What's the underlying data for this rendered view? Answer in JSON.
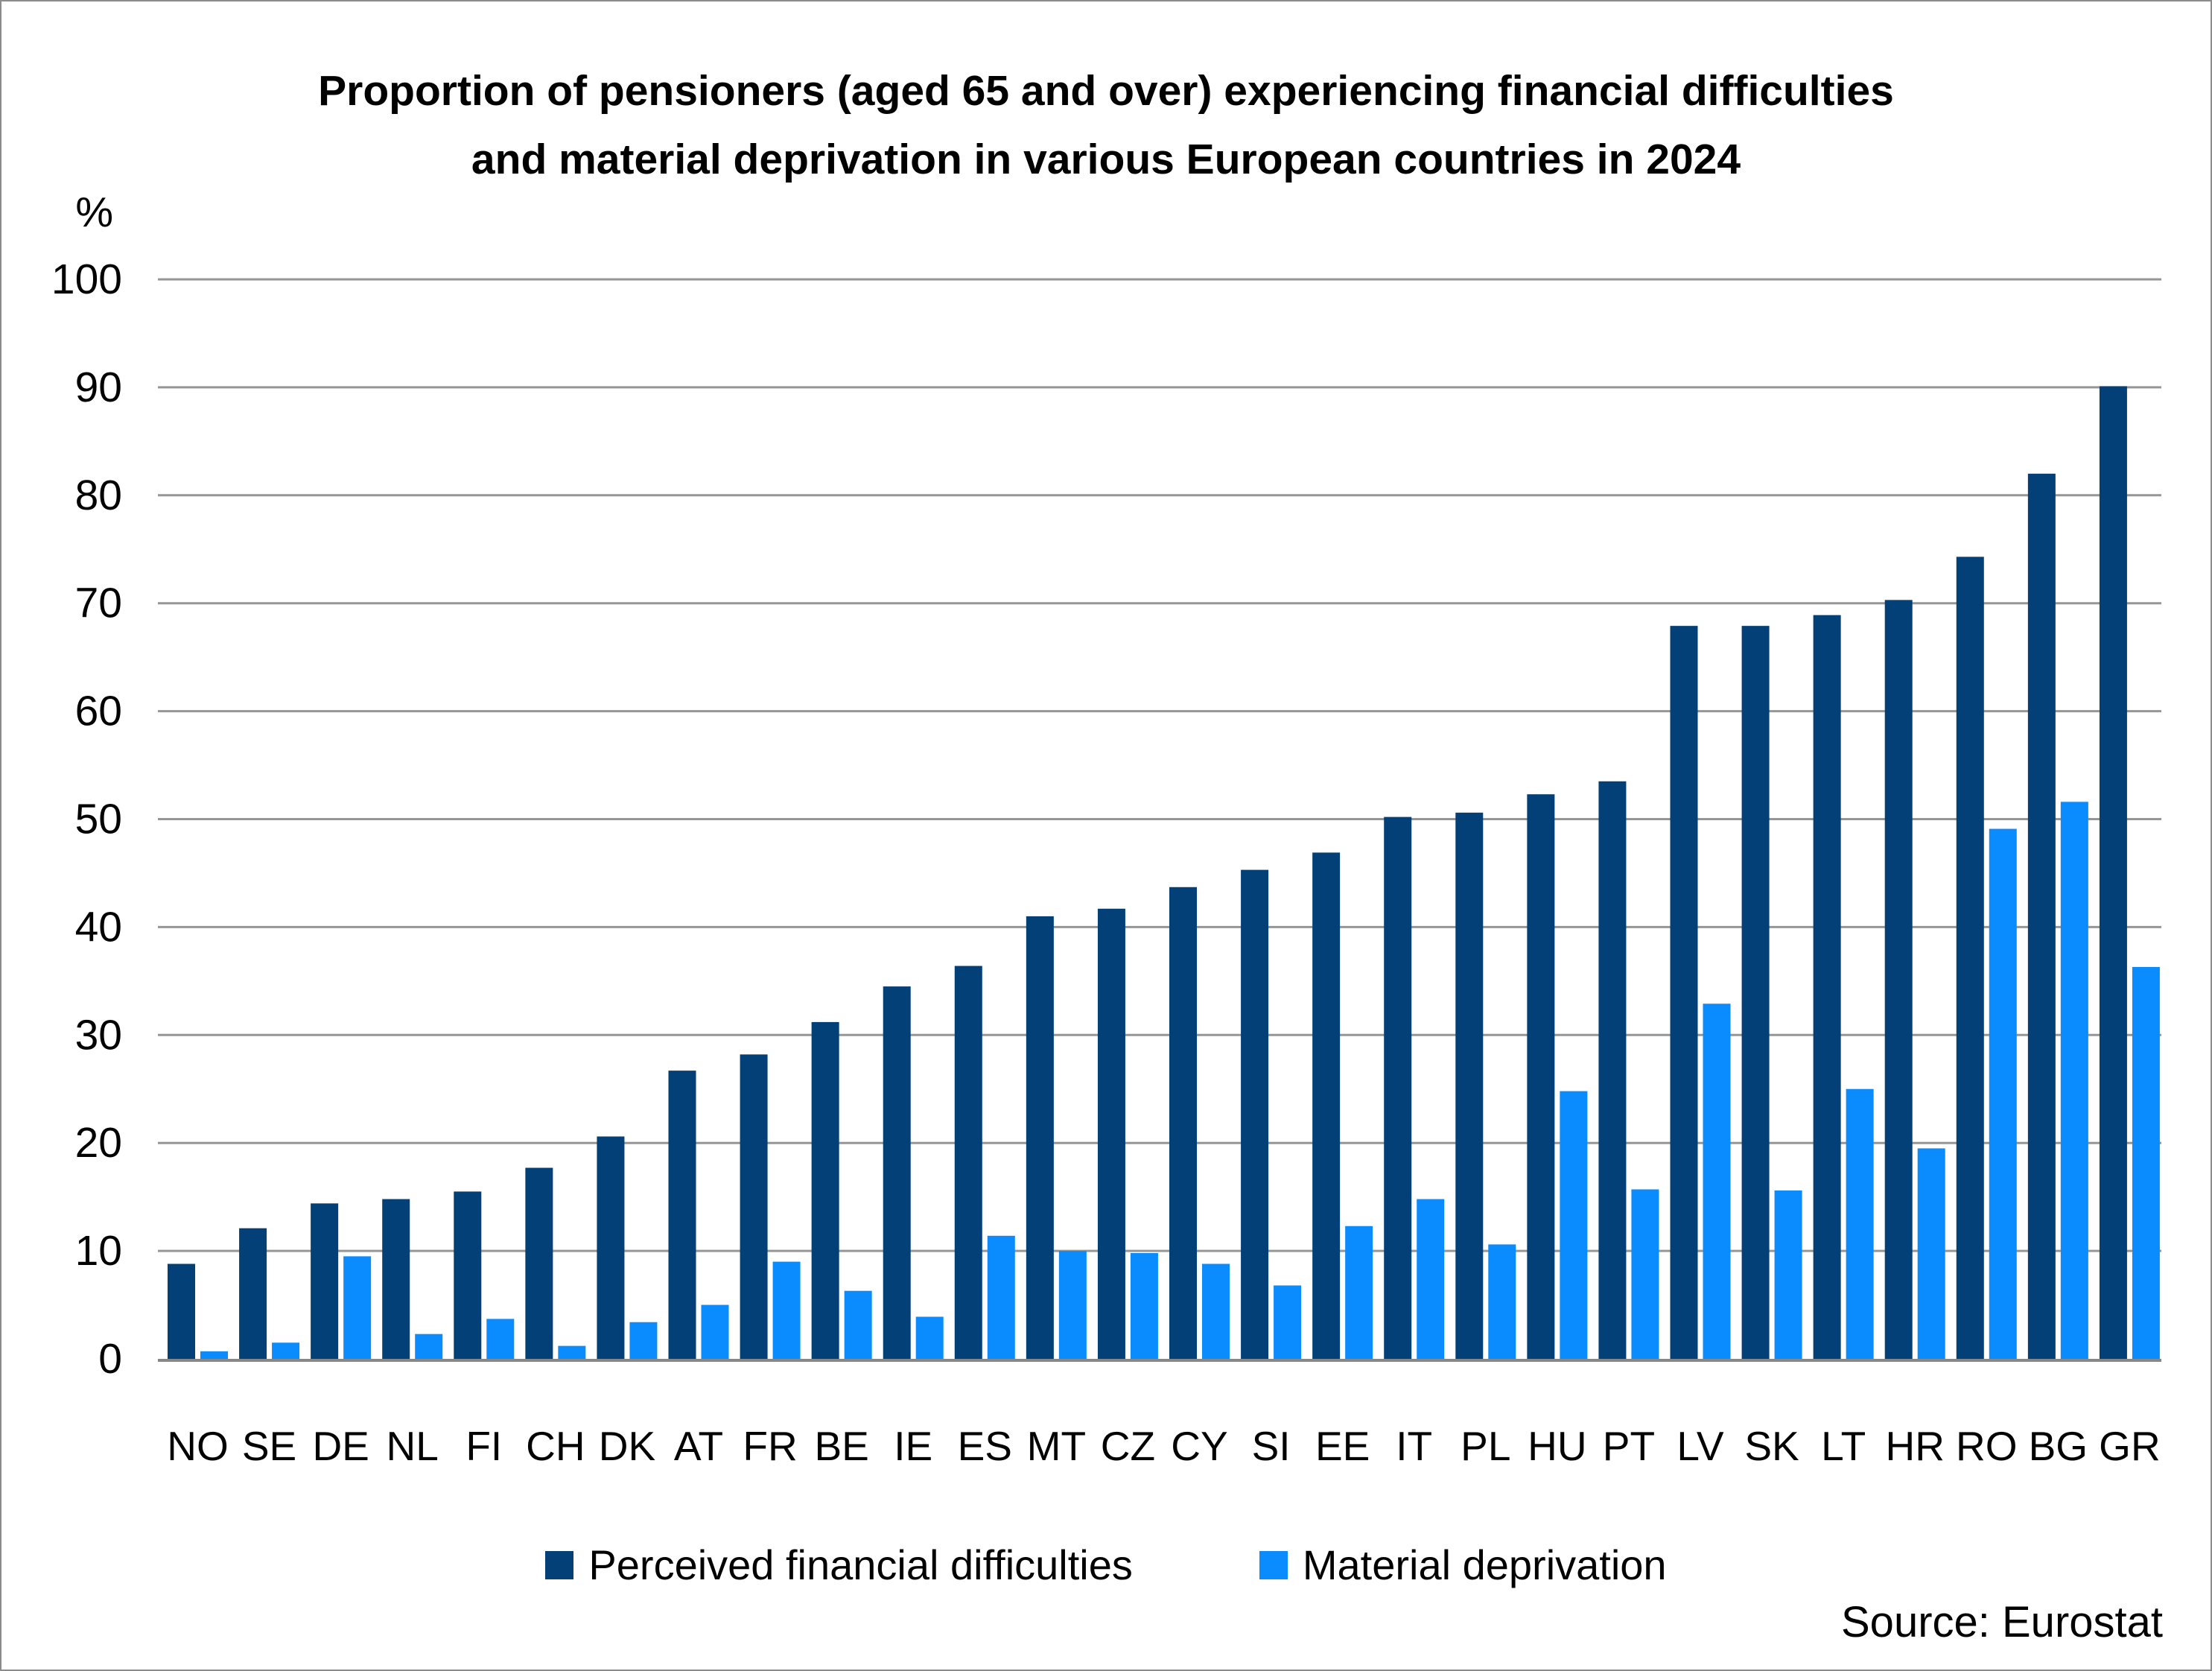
{
  "page": {
    "title_line1": "Proportion of pensioners (aged 65 and over) experiencing financial difficulties",
    "title_line2": "and material deprivation in various European countries in 2024",
    "source": "Source: Eurostat"
  },
  "chart_data": {
    "type": "bar",
    "title": "Proportion of pensioners (aged 65 and over) experiencing financial difficulties and material deprivation in various European countries in 2024",
    "unit_label": "%",
    "categories": [
      "NO",
      "SE",
      "DE",
      "NL",
      "FI",
      "CH",
      "DK",
      "AT",
      "FR",
      "BE",
      "IE",
      "ES",
      "MT",
      "CZ",
      "CY",
      "SI",
      "EE",
      "IT",
      "PL",
      "HU",
      "PT",
      "LV",
      "SK",
      "LT",
      "HR",
      "RO",
      "BG",
      "GR"
    ],
    "series": [
      {
        "name": "Perceived financial difficulties",
        "color": "#044078",
        "values": [
          8.8,
          12.1,
          14.4,
          14.8,
          15.5,
          17.7,
          20.6,
          26.7,
          28.2,
          31.2,
          34.5,
          36.4,
          41.0,
          41.7,
          43.7,
          45.3,
          46.9,
          50.2,
          50.6,
          52.3,
          53.5,
          67.9,
          67.9,
          68.9,
          70.3,
          74.3,
          82.0,
          90.1
        ]
      },
      {
        "name": "Material deprivation",
        "color": "#0a8cff",
        "values": [
          0.7,
          1.5,
          9.5,
          2.3,
          3.7,
          1.2,
          3.4,
          5.0,
          9.0,
          6.3,
          3.9,
          11.4,
          10.0,
          9.8,
          8.8,
          6.8,
          12.3,
          14.8,
          10.6,
          24.8,
          15.7,
          32.9,
          15.6,
          25.0,
          19.5,
          49.1,
          51.6,
          36.3
        ]
      }
    ],
    "ylim": [
      0,
      100
    ],
    "ytick_step": 10,
    "grid": true,
    "gridline_color": "#969696",
    "baseline_color": "#878787",
    "legend_position": "bottom",
    "source": "Source: Eurostat"
  }
}
